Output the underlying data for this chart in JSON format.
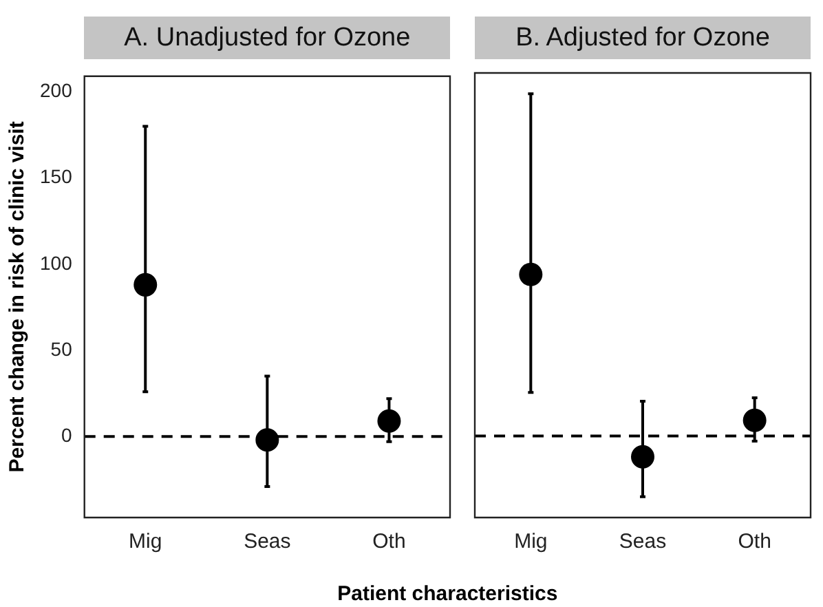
{
  "chart_data": [
    {
      "type": "scatter",
      "title": "A. Unadjusted for Ozone",
      "ylabel": "Percent change in risk of clinic visit",
      "xlabel": "Patient characteristics",
      "categories": [
        "Mig",
        "Seas",
        "Oth"
      ],
      "marker": "circle",
      "color": "#000000",
      "values": [
        88,
        -2,
        9
      ],
      "errors": [
        [
          26,
          180
        ],
        [
          -29,
          35
        ],
        [
          -3,
          22
        ]
      ],
      "ylim": [
        -47,
        209
      ],
      "yticks": [
        0,
        50,
        100,
        150,
        200
      ],
      "ref_lines": [
        {
          "axis": "y",
          "value": 0,
          "line_style": "dashed",
          "color": "#000000"
        }
      ]
    },
    {
      "type": "scatter",
      "title": "B. Adjusted for Ozone",
      "categories": [
        "Mig",
        "Seas",
        "Oth"
      ],
      "marker": "circle",
      "color": "#000000",
      "values": [
        93,
        -12,
        9
      ],
      "errors": [
        [
          25,
          197
        ],
        [
          -35,
          20
        ],
        [
          -3,
          22
        ]
      ],
      "ylim": [
        -47,
        209
      ],
      "yticks": [
        0,
        50,
        100,
        150,
        200
      ],
      "tick_labels": "x",
      "ref_lines": [
        {
          "axis": "y",
          "value": 0,
          "line_style": "dashed",
          "color": "#000000"
        }
      ]
    }
  ]
}
